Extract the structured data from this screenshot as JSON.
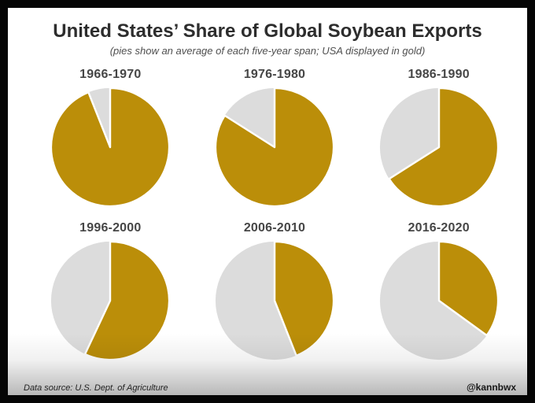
{
  "header": {
    "title": "United States’ Share of Global Soybean Exports",
    "subtitle": "(pies show an average of each five-year span; USA displayed in gold)"
  },
  "chart_data": {
    "type": "pie",
    "title": "United States’ Share of Global Soybean Exports",
    "subtitle": "(pies show an average of each five-year span; USA displayed in gold)",
    "unit": "percent of global soybean exports",
    "colors": {
      "usa": "#BB8E09",
      "rest_of_world": "#DCDCDC",
      "slice_border": "#FFFFFF"
    },
    "pies": [
      {
        "label": "1966-1970",
        "usa_share_pct": 94,
        "rest_of_world_pct": 6
      },
      {
        "label": "1976-1980",
        "usa_share_pct": 84,
        "rest_of_world_pct": 16
      },
      {
        "label": "1986-1990",
        "usa_share_pct": 66,
        "rest_of_world_pct": 34
      },
      {
        "label": "1996-2000",
        "usa_share_pct": 57,
        "rest_of_world_pct": 43
      },
      {
        "label": "2006-2010",
        "usa_share_pct": 44,
        "rest_of_world_pct": 56
      },
      {
        "label": "2016-2020",
        "usa_share_pct": 35,
        "rest_of_world_pct": 65
      }
    ],
    "layout": {
      "rows": 2,
      "cols": 3,
      "slice_start": "12 o'clock, clockwise, USA first"
    }
  },
  "footer": {
    "source": "Data source: U.S. Dept. of Agriculture",
    "credit": "@kannbwx"
  }
}
